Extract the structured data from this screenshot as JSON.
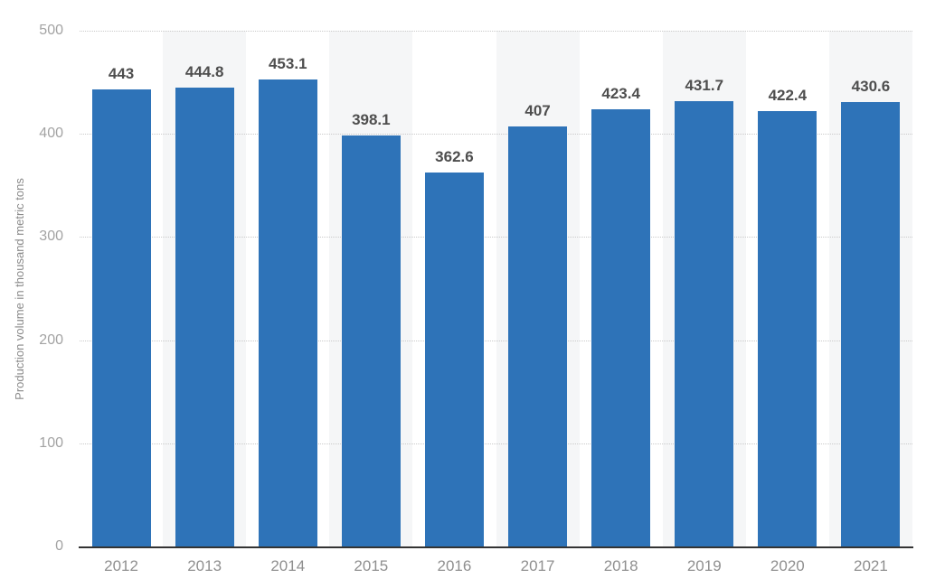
{
  "chart_data": {
    "type": "bar",
    "title": "",
    "categories": [
      "2012",
      "2013",
      "2014",
      "2015",
      "2016",
      "2017",
      "2018",
      "2019",
      "2020",
      "2021"
    ],
    "values": [
      443,
      444.8,
      453.1,
      398.1,
      362.6,
      407,
      423.4,
      431.7,
      422.4,
      430.6
    ],
    "value_labels": [
      "443",
      "444.8",
      "453.1",
      "398.1",
      "362.6",
      "407",
      "423.4",
      "431.7",
      "422.4",
      "430.6"
    ],
    "xlabel": "",
    "ylabel": "Production volume in thousand metric tons",
    "ylim": [
      0,
      500
    ],
    "yticks": [
      0,
      100,
      200,
      300,
      400,
      500
    ],
    "ytick_labels": [
      "0",
      "100",
      "200",
      "300",
      "400",
      "500"
    ],
    "grid": "horizontal-dotted",
    "legend": "none",
    "bands_behind_categories": [
      "2013",
      "2015",
      "2017",
      "2019",
      "2021"
    ],
    "colors": {
      "bar": "#2e73b8",
      "band": "#f5f6f7",
      "gridline": "#c9c9c9",
      "axis_line": "#333333",
      "value_label": "#4e4e4e",
      "y_tick_label": "#a3a3a3",
      "x_tick_label": "#8f8f8f",
      "axis_title": "#8a8a8a",
      "background": "#ffffff"
    }
  }
}
